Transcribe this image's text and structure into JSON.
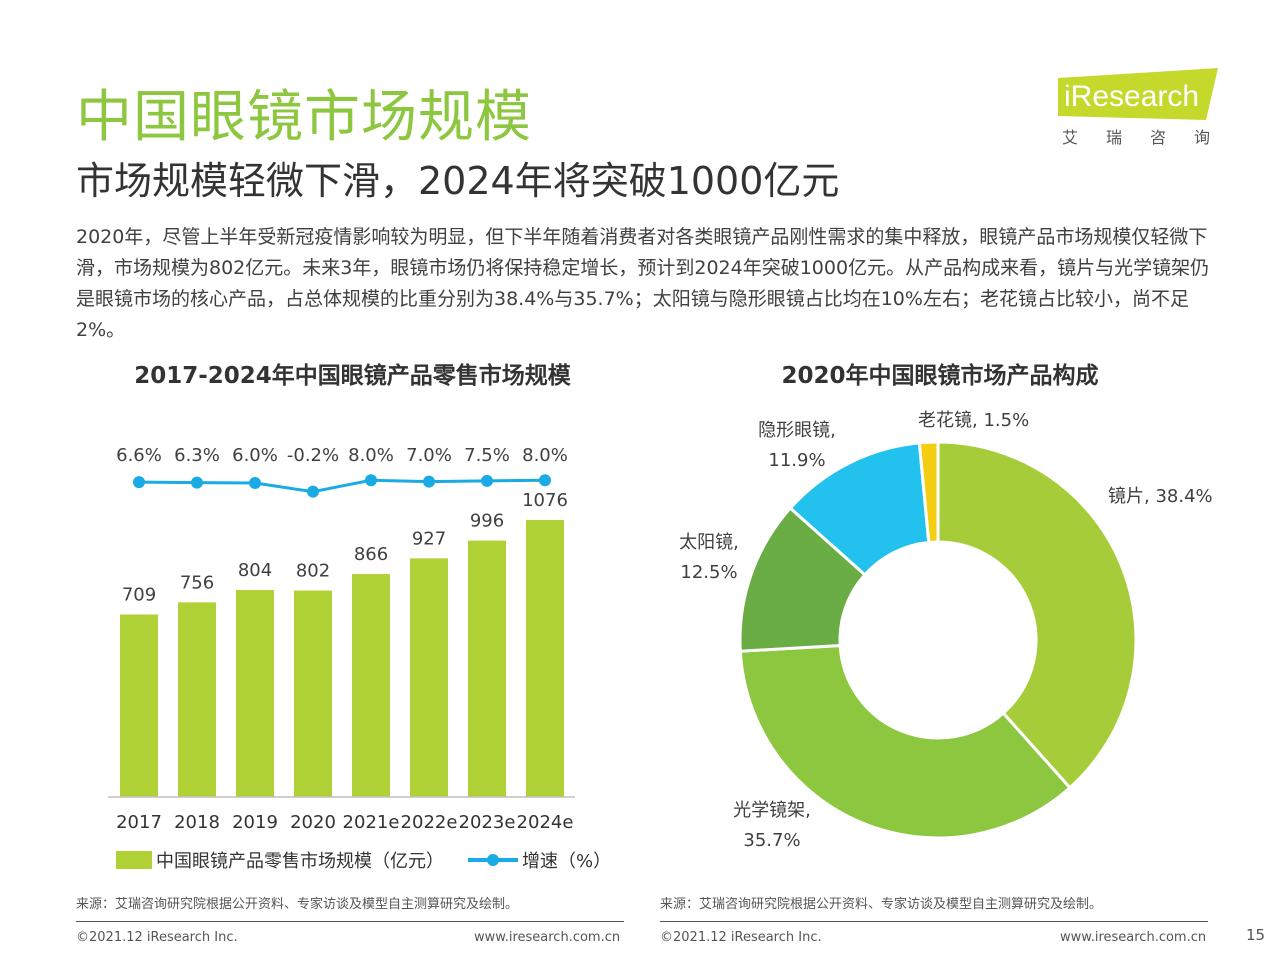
{
  "header": {
    "title": "中国眼镜市场规模",
    "subtitle": "市场规模轻微下滑，2024年将突破1000亿元",
    "body": "2020年，尽管上半年受新冠疫情影响较为明显，但下半年随着消费者对各类眼镜产品刚性需求的集中释放，眼镜产品市场规模仅轻微下滑，市场规模为802亿元。未来3年，眼镜市场仍将保持稳定增长，预计到2024年突破1000亿元。从产品构成来看，镜片与光学镜架仍是眼镜市场的核心产品，占总体规模的比重分别为38.4%与35.7%；太阳镜与隐形眼镜占比均在10%左右；老花镜占比较小，尚不足2%。"
  },
  "logo": {
    "en": "iResearch",
    "cn": "艾瑞咨询",
    "color": "#c5d92d"
  },
  "colors": {
    "title": "#8dc63f",
    "bar": "#b0d135",
    "line": "#1aabe4"
  },
  "chart_data": [
    {
      "type": "bar",
      "title": "2017-2024年中国眼镜产品零售市场规模",
      "categories": [
        "2017",
        "2018",
        "2019",
        "2020",
        "2021e",
        "2022e",
        "2023e",
        "2024e"
      ],
      "series": [
        {
          "name": "中国眼镜产品零售市场规模（亿元）",
          "values": [
            709,
            756,
            804,
            802,
            866,
            927,
            996,
            1076
          ]
        }
      ],
      "line_series": {
        "name": "增速（%）",
        "values": [
          6.6,
          6.3,
          6.0,
          -0.2,
          8.0,
          7.0,
          7.5,
          8.0
        ],
        "labels": [
          "6.6%",
          "6.3%",
          "6.0%",
          "-0.2%",
          "8.0%",
          "7.0%",
          "7.5%",
          "8.0%"
        ]
      },
      "ylim": [
        0,
        1800
      ],
      "grid": false,
      "legend_position": "bottom"
    },
    {
      "type": "pie",
      "title": "2020年中国眼镜市场产品构成",
      "slices": [
        {
          "label": "镜片",
          "value": 38.4,
          "color": "#a7cc3a",
          "text": "镜片, 38.4%"
        },
        {
          "label": "光学镜架",
          "value": 35.7,
          "color": "#8dc63f",
          "text1": "光学镜架,",
          "text2": "35.7%"
        },
        {
          "label": "太阳镜",
          "value": 12.5,
          "color": "#6aad44",
          "text1": "太阳镜,",
          "text2": "12.5%"
        },
        {
          "label": "隐形眼镜",
          "value": 11.9,
          "color": "#22c1ee",
          "text1": "隐形眼镜,",
          "text2": "11.9%"
        },
        {
          "label": "老花镜",
          "value": 1.5,
          "color": "#f5cd12",
          "text": "老花镜, 1.5%"
        }
      ],
      "donut": true
    }
  ],
  "source": {
    "left": "来源：艾瑞咨询研究院根据公开资料、专家访谈及模型自主测算研究及绘制。",
    "right": "来源：艾瑞咨询研究院根据公开资料、专家访谈及模型自主测算研究及绘制。"
  },
  "footer": {
    "copyright": "©2021.12 iResearch Inc.",
    "website": "www.iresearch.com.cn",
    "page": "15"
  }
}
